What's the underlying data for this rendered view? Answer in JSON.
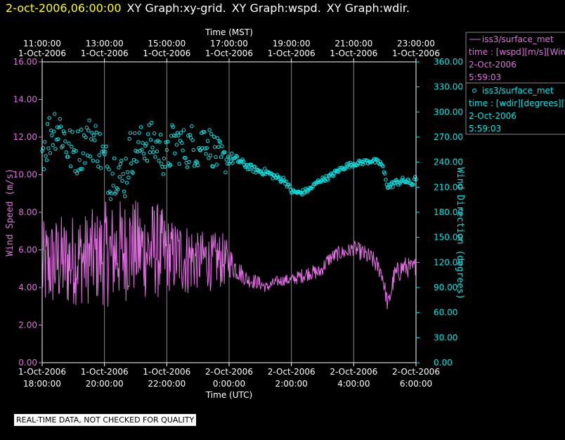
{
  "header": {
    "timestamp": "2-oct-2006,06:00:00",
    "graphs": [
      "XY Graph:xy-grid.",
      "XY Graph:wspd.",
      "XY Graph:wdir."
    ]
  },
  "footer": {
    "quality_note": "REAL-TIME DATA, NOT CHECKED FOR QUALITY"
  },
  "colors": {
    "wspd": "#e070e0",
    "wdir": "#00e8e8",
    "axis": "#ffffff",
    "grid": "#888888"
  },
  "chart_data": {
    "type": "line",
    "top_axis": {
      "title": "Time (MST)",
      "ticks": [
        {
          "hour": 0,
          "time": "11:00:00",
          "date": "1-Oct-2006"
        },
        {
          "hour": 2,
          "time": "13:00:00",
          "date": "1-Oct-2006"
        },
        {
          "hour": 4,
          "time": "15:00:00",
          "date": "1-Oct-2006"
        },
        {
          "hour": 6,
          "time": "17:00:00",
          "date": "1-Oct-2006"
        },
        {
          "hour": 8,
          "time": "19:00:00",
          "date": "1-Oct-2006"
        },
        {
          "hour": 10,
          "time": "21:00:00",
          "date": "1-Oct-2006"
        },
        {
          "hour": 12,
          "time": "23:00:00",
          "date": "1-Oct-2006"
        }
      ]
    },
    "bottom_axis": {
      "title": "Time (UTC)",
      "ticks": [
        {
          "hour": 0,
          "date": "1-Oct-2006",
          "time": "18:00:00"
        },
        {
          "hour": 2,
          "date": "1-Oct-2006",
          "time": "20:00:00"
        },
        {
          "hour": 4,
          "date": "1-Oct-2006",
          "time": "22:00:00"
        },
        {
          "hour": 6,
          "date": "2-Oct-2006",
          "time": "0:00:00"
        },
        {
          "hour": 8,
          "date": "2-Oct-2006",
          "time": "2:00:00"
        },
        {
          "hour": 10,
          "date": "2-Oct-2006",
          "time": "4:00:00"
        },
        {
          "hour": 12,
          "date": "2-Oct-2006",
          "time": "6:00:00"
        }
      ]
    },
    "xlim": [
      0,
      12
    ],
    "left_axis": {
      "title": "Wind Speed (m/s)",
      "ylim": [
        0,
        16
      ],
      "ticks": [
        "0.00",
        "2.00",
        "4.00",
        "6.00",
        "8.00",
        "10.00",
        "12.00",
        "14.00",
        "16.00"
      ]
    },
    "right_axis": {
      "title": "Wind Direction (degrees)",
      "ylim": [
        0,
        360
      ],
      "ticks": [
        "0.00",
        "30.00",
        "60.00",
        "90.00",
        "120.00",
        "150.00",
        "180.00",
        "210.00",
        "240.00",
        "270.00",
        "300.00",
        "330.00",
        "360.00"
      ]
    },
    "grid": true,
    "legend": [
      {
        "label": "iss3/surface_met",
        "detail": "time : [wspd][m/s][Win",
        "date": "2-Oct-2006",
        "time": "5:59:03",
        "marker": "line"
      },
      {
        "label": "iss3/surface_met",
        "detail": "time : [wdir][degrees][V",
        "date": "2-Oct-2006",
        "time": "5:59:03",
        "marker": "circle"
      }
    ],
    "series": [
      {
        "key": "wspd",
        "axis": "left",
        "style": "line",
        "x": [
          0,
          0.2,
          0.4,
          0.6,
          0.8,
          1.0,
          1.2,
          1.4,
          1.6,
          1.8,
          2.0,
          2.2,
          2.4,
          2.6,
          2.8,
          3.0,
          3.2,
          3.4,
          3.6,
          3.8,
          4.0,
          4.2,
          4.4,
          4.6,
          4.8,
          5.0,
          5.2,
          5.4,
          5.6,
          5.8,
          6.0,
          6.3,
          6.6,
          6.9,
          7.2,
          7.5,
          7.8,
          8.0,
          8.3,
          8.6,
          8.9,
          9.2,
          9.5,
          9.8,
          10.0,
          10.3,
          10.6,
          10.9,
          11.1,
          11.3,
          11.6,
          11.9,
          12.0
        ],
        "mean": [
          5.0,
          5.2,
          5.3,
          5.4,
          5.3,
          5.5,
          5.6,
          5.5,
          5.7,
          5.6,
          5.8,
          5.7,
          6.0,
          5.9,
          6.2,
          6.1,
          6.0,
          5.9,
          6.1,
          5.8,
          5.8,
          5.6,
          5.7,
          5.5,
          5.6,
          5.4,
          5.6,
          5.3,
          5.5,
          5.4,
          5.4,
          4.9,
          4.4,
          4.3,
          4.0,
          4.3,
          4.4,
          4.4,
          4.6,
          4.8,
          4.8,
          5.5,
          5.8,
          5.9,
          6.1,
          5.8,
          5.5,
          4.8,
          3.0,
          4.6,
          5.1,
          5.0,
          5.2
        ],
        "spread": [
          2.5,
          2.5,
          2.5,
          2.5,
          2.5,
          2.5,
          2.5,
          2.5,
          2.5,
          2.5,
          2.8,
          2.8,
          2.8,
          2.8,
          2.8,
          2.6,
          2.6,
          2.6,
          2.6,
          2.6,
          2.0,
          2.0,
          2.0,
          2.0,
          2.0,
          1.5,
          1.5,
          1.5,
          1.5,
          1.5,
          0.9,
          0.6,
          0.4,
          0.4,
          0.3,
          0.3,
          0.3,
          0.3,
          0.4,
          0.4,
          0.4,
          0.4,
          0.4,
          0.4,
          0.4,
          0.5,
          0.5,
          0.5,
          0.5,
          0.6,
          0.6,
          0.5,
          0.5
        ]
      },
      {
        "key": "wdir",
        "axis": "right",
        "style": "scatter",
        "x": [
          0,
          0.2,
          0.4,
          0.6,
          0.8,
          1.0,
          1.2,
          1.4,
          1.6,
          1.8,
          2.0,
          2.2,
          2.4,
          2.6,
          2.8,
          3.0,
          3.2,
          3.4,
          3.6,
          3.8,
          4.0,
          4.2,
          4.4,
          4.6,
          4.8,
          5.0,
          5.2,
          5.4,
          5.6,
          5.8,
          6.0,
          6.3,
          6.6,
          6.9,
          7.2,
          7.5,
          7.8,
          8.0,
          8.3,
          8.6,
          8.9,
          9.2,
          9.5,
          9.8,
          10.0,
          10.3,
          10.6,
          10.9,
          11.1,
          11.3,
          11.6,
          11.9,
          12.0
        ],
        "mean": [
          255,
          270,
          285,
          280,
          260,
          250,
          255,
          265,
          270,
          260,
          240,
          225,
          235,
          215,
          250,
          255,
          260,
          265,
          262,
          255,
          240,
          265,
          262,
          255,
          262,
          253,
          272,
          260,
          248,
          240,
          245,
          242,
          235,
          230,
          228,
          222,
          218,
          205,
          203,
          208,
          218,
          222,
          230,
          236,
          238,
          240,
          242,
          238,
          210,
          215,
          218,
          214,
          222
        ],
        "spread": [
          30,
          30,
          30,
          30,
          30,
          28,
          28,
          28,
          28,
          28,
          30,
          30,
          30,
          30,
          30,
          25,
          25,
          25,
          25,
          25,
          25,
          25,
          25,
          25,
          25,
          22,
          22,
          22,
          22,
          22,
          8,
          5,
          4,
          4,
          4,
          4,
          4,
          3,
          3,
          3,
          3,
          3,
          3,
          3,
          3,
          3,
          3,
          4,
          4,
          4,
          4,
          3,
          3
        ]
      }
    ]
  }
}
